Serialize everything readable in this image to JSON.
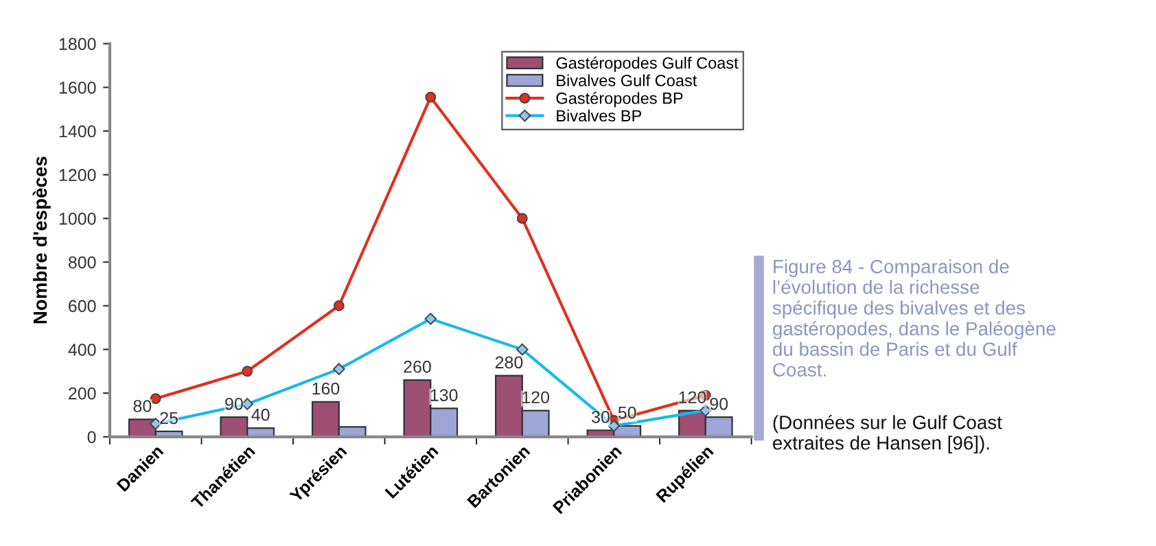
{
  "chart_data": {
    "type": "bar",
    "ylabel": "Nombre d'espèces",
    "categories": [
      "Danien",
      "Thanétien",
      "Yprésien",
      "Lutétien",
      "Bartonien",
      "Priabonien",
      "Rupélien"
    ],
    "series": [
      {
        "name": "Gastéropodes Gulf Coast",
        "color": "#9e4f73",
        "values": [
          80,
          90,
          160,
          260,
          280,
          30,
          120
        ],
        "value_labels": [
          "80",
          "90",
          "160",
          "260",
          "280",
          "30",
          "120"
        ]
      },
      {
        "name": "Bivalves Gulf Coast",
        "color": "#9ea6d8",
        "values": [
          25,
          40,
          45,
          130,
          120,
          50,
          90
        ],
        "value_labels": [
          "25",
          "40",
          null,
          "130",
          "120",
          "50",
          "90"
        ]
      },
      {
        "name": "Gastéropodes BP",
        "type": "line",
        "color": "#e03020",
        "marker": "circle",
        "values": [
          175,
          300,
          600,
          1555,
          1000,
          75,
          190
        ]
      },
      {
        "name": "Bivalves BP",
        "type": "line",
        "color": "#19b8ec",
        "marker": "diamond",
        "values": [
          60,
          150,
          310,
          540,
          400,
          50,
          120
        ]
      }
    ],
    "ylim": [
      0,
      1800
    ],
    "yticks": [
      0,
      200,
      400,
      600,
      800,
      1000,
      1200,
      1400,
      1600,
      1800
    ],
    "grid": false,
    "legend": "top right",
    "annotations": [
      "Figure 84 - Comparaison de l’évolution de la richesse spécifique des bivalves et des gastéropodes, dans le Paléogène du bassin de Paris et du Gulf Coast.",
      "(Données sur le Gulf Coast extraites de Hansen [96])."
    ]
  }
}
